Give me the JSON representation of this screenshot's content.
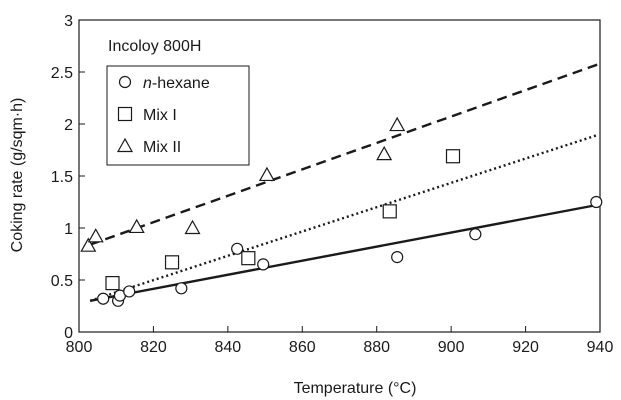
{
  "chart_data": {
    "type": "scatter",
    "title": "",
    "xlabel": "Temperature (°C)",
    "ylabel": "Coking rate (g/sqm·h)",
    "xlim": [
      800,
      940
    ],
    "ylim": [
      0,
      3
    ],
    "xticks": [
      "800",
      "820",
      "840",
      "860",
      "880",
      "900",
      "920",
      "940"
    ],
    "yticks": [
      "0",
      "0.5",
      "1",
      "1.5",
      "2",
      "2.5",
      "3"
    ],
    "grid": false,
    "legend_position": "top-left",
    "annotation": "Incoloy 800H",
    "series": [
      {
        "name": "n-hexane",
        "name_italic_part": "n",
        "name_rest": "-hexane",
        "marker": "circle",
        "points": [
          [
            806.5,
            0.32
          ],
          [
            810.5,
            0.3
          ],
          [
            811.0,
            0.35
          ],
          [
            813.5,
            0.39
          ],
          [
            827.5,
            0.42
          ],
          [
            842.5,
            0.8
          ],
          [
            849.5,
            0.65
          ],
          [
            885.5,
            0.72
          ],
          [
            906.5,
            0.94
          ],
          [
            939.0,
            1.25
          ]
        ],
        "fit_line": {
          "style": "solid",
          "x": [
            803,
            939
          ],
          "y": [
            0.3,
            1.22
          ]
        }
      },
      {
        "name": "Mix I",
        "marker": "square",
        "points": [
          [
            809.0,
            0.47
          ],
          [
            825.0,
            0.67
          ],
          [
            845.5,
            0.71
          ],
          [
            883.5,
            1.16
          ],
          [
            900.5,
            1.69
          ]
        ],
        "fit_line": {
          "style": "dotted",
          "x": [
            803,
            939
          ],
          "y": [
            0.3,
            1.89
          ]
        }
      },
      {
        "name": "Mix II",
        "marker": "triangle",
        "points": [
          [
            802.5,
            0.83
          ],
          [
            804.5,
            0.92
          ],
          [
            815.5,
            1.01
          ],
          [
            830.5,
            1.0
          ],
          [
            850.5,
            1.51
          ],
          [
            882.0,
            1.71
          ],
          [
            885.5,
            1.99
          ]
        ],
        "fit_line": {
          "style": "dashed",
          "x": [
            803,
            940
          ],
          "y": [
            0.84,
            2.58
          ]
        }
      }
    ]
  }
}
